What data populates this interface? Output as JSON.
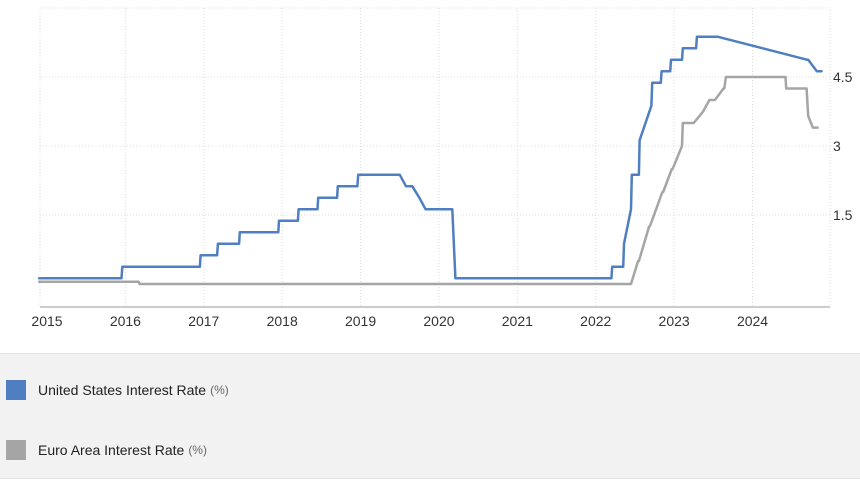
{
  "chart_data": {
    "type": "line",
    "title": "",
    "xlabel": "",
    "ylabel": "",
    "x_ticks": [
      "2015",
      "2016",
      "2017",
      "2018",
      "2019",
      "2020",
      "2021",
      "2022",
      "2023",
      "2024"
    ],
    "y_ticks": [
      "1.5",
      "3",
      "4.5"
    ],
    "xlim": [
      2015.0,
      2024.95
    ],
    "ylim": [
      -0.5,
      6.0
    ],
    "grid": true,
    "legend_position": "bottom",
    "series": [
      {
        "name": "United States Interest Rate",
        "unit": "(%)",
        "color": "#4f7fc0",
        "x": [
          2014.9,
          2015.95,
          2015.96,
          2016.95,
          2016.96,
          2017.17,
          2017.18,
          2017.45,
          2017.46,
          2017.95,
          2017.96,
          2018.2,
          2018.21,
          2018.45,
          2018.46,
          2018.7,
          2018.71,
          2018.96,
          2018.97,
          2019.5,
          2019.58,
          2019.66,
          2019.75,
          2019.83,
          2020.17,
          2020.21,
          2022.2,
          2022.21,
          2022.35,
          2022.36,
          2022.45,
          2022.46,
          2022.55,
          2022.56,
          2022.71,
          2022.72,
          2022.83,
          2022.84,
          2022.95,
          2022.96,
          2023.1,
          2023.11,
          2023.28,
          2023.29,
          2023.55,
          2023.56,
          2024.7,
          2024.71,
          2024.82,
          2024.88
        ],
        "y": [
          0.125,
          0.125,
          0.375,
          0.375,
          0.625,
          0.625,
          0.875,
          0.875,
          1.125,
          1.125,
          1.375,
          1.375,
          1.625,
          1.625,
          1.875,
          1.875,
          2.125,
          2.125,
          2.375,
          2.375,
          2.125,
          2.125,
          1.875,
          1.625,
          1.625,
          0.125,
          0.125,
          0.375,
          0.375,
          0.875,
          1.625,
          2.375,
          2.375,
          3.125,
          3.875,
          4.375,
          4.375,
          4.625,
          4.625,
          4.875,
          4.875,
          5.125,
          5.125,
          5.375,
          5.375,
          5.375,
          4.875,
          4.875,
          4.625,
          4.625
        ]
      },
      {
        "name": "Euro Area Interest Rate",
        "unit": "(%)",
        "color": "#a5a5a5",
        "x": [
          2014.9,
          2016.17,
          2016.18,
          2022.45,
          2022.54,
          2022.55,
          2022.68,
          2022.69,
          2022.85,
          2022.86,
          2022.97,
          2022.98,
          2023.1,
          2023.11,
          2023.25,
          2023.37,
          2023.45,
          2023.52,
          2023.63,
          2023.64,
          2023.66,
          2023.67,
          2024.42,
          2024.43,
          2024.69,
          2024.71,
          2024.77,
          2024.83
        ],
        "y": [
          0.05,
          0.05,
          0.0,
          0.0,
          0.5,
          0.5,
          1.25,
          1.25,
          2.0,
          2.0,
          2.5,
          2.5,
          3.0,
          3.5,
          3.5,
          3.75,
          4.0,
          4.0,
          4.25,
          4.25,
          4.5,
          4.5,
          4.5,
          4.25,
          4.25,
          3.65,
          3.4,
          3.4
        ]
      }
    ]
  }
}
